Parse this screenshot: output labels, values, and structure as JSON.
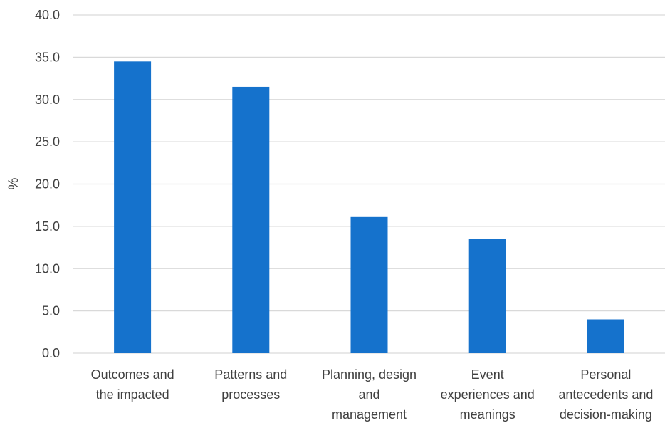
{
  "chart_data": {
    "type": "bar",
    "title": "",
    "xlabel": "",
    "ylabel": "%",
    "ylim": [
      0,
      40
    ],
    "ytick_step": 5,
    "ytick_decimals": 1,
    "grid": true,
    "bar_color": "#1572CC",
    "grid_color": "#D9D9D9",
    "categories": [
      [
        "Outcomes and",
        "the impacted"
      ],
      [
        "Patterns and",
        "processes"
      ],
      [
        "Planning, design",
        "and",
        "management"
      ],
      [
        "Event",
        "experiences and",
        "meanings"
      ],
      [
        "Personal",
        "antecedents and",
        "decision-making"
      ]
    ],
    "values": [
      34.5,
      31.5,
      16.1,
      13.5,
      4.0
    ]
  }
}
